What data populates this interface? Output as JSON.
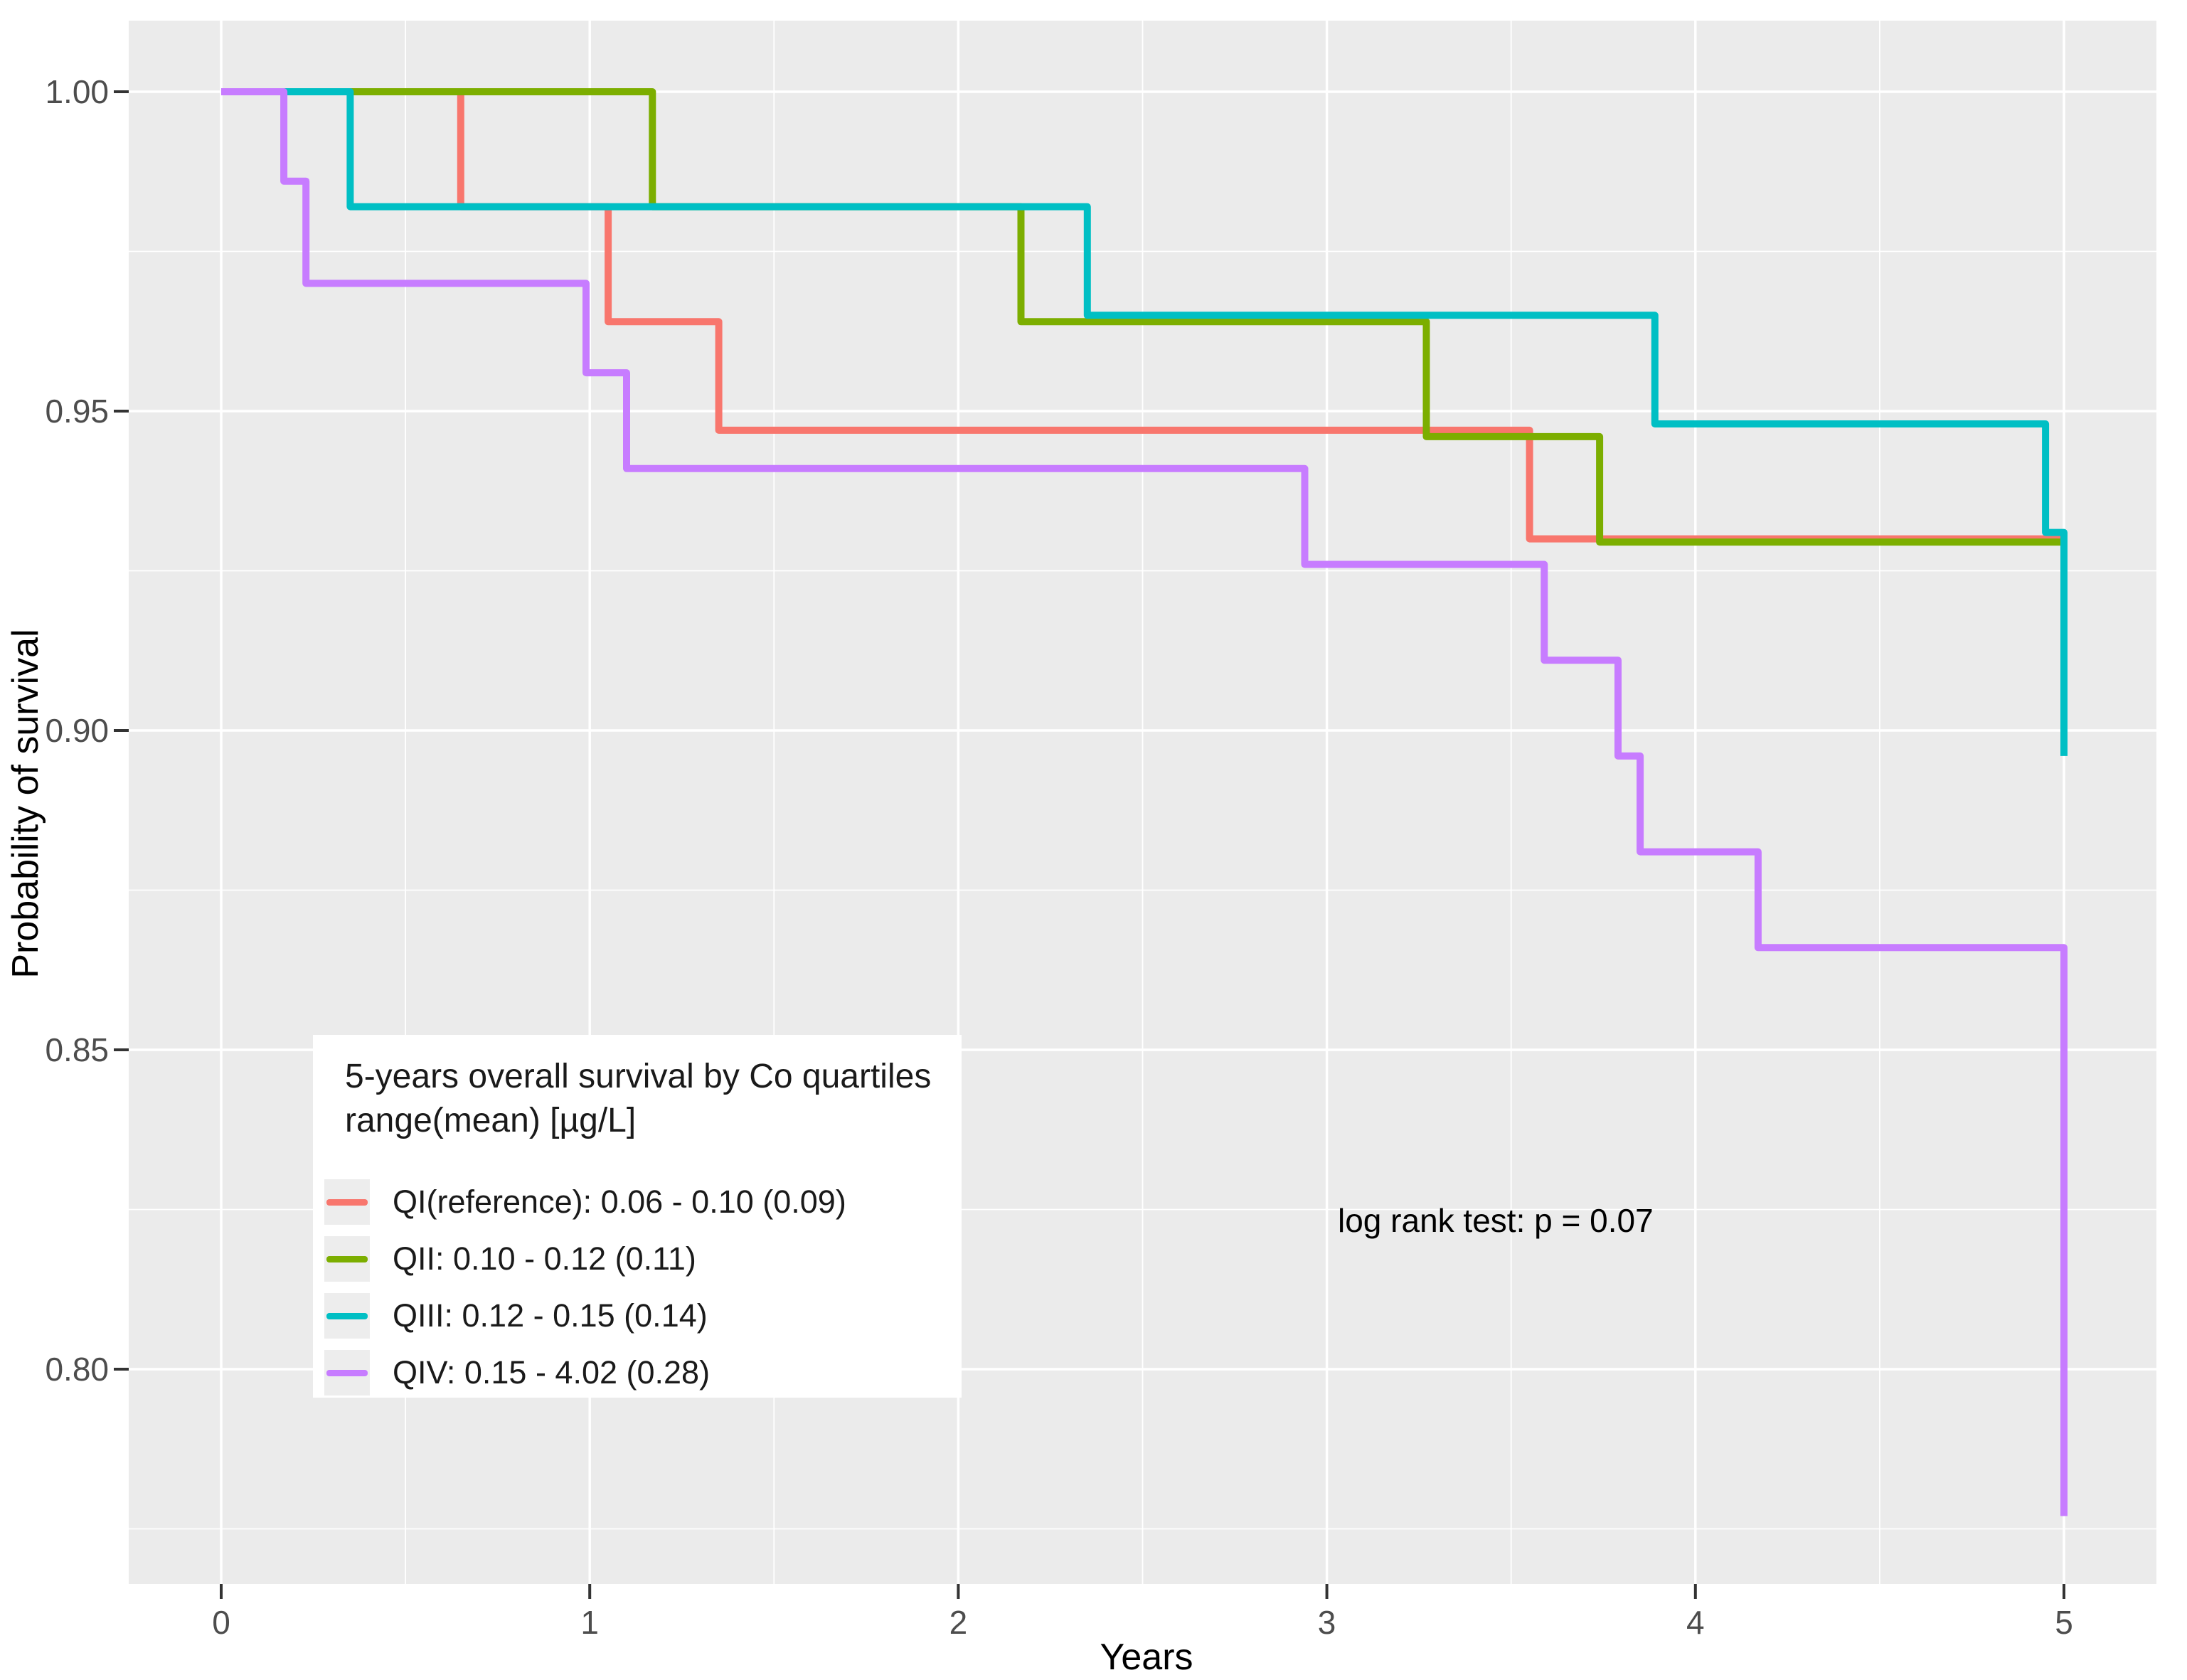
{
  "colors": {
    "panel_background": "#EBEBEB",
    "grid": "#FFFFFF",
    "tick_mark": "#333333",
    "tick_label": "#4D4D4D",
    "legend_key_background": "#EDEDED",
    "series_red": "#F8766D",
    "series_green": "#7CAE00",
    "series_teal": "#00BFC4",
    "series_purple": "#C77CFF"
  },
  "axes": {
    "y_title": "Probability of survival",
    "x_title": "Years",
    "y_ticks": [
      {
        "label": "1.00",
        "value": 1.0
      },
      {
        "label": "0.95",
        "value": 0.95
      },
      {
        "label": "0.90",
        "value": 0.9
      },
      {
        "label": "0.85",
        "value": 0.85
      },
      {
        "label": "0.80",
        "value": 0.8
      }
    ],
    "x_ticks": [
      {
        "label": "0",
        "value": 0
      },
      {
        "label": "1",
        "value": 1
      },
      {
        "label": "2",
        "value": 2
      },
      {
        "label": "3",
        "value": 3
      },
      {
        "label": "4",
        "value": 4
      },
      {
        "label": "5",
        "value": 5
      }
    ]
  },
  "legend": {
    "title_line1": "5-years overall survival by Co quartiles",
    "title_line2": "range(mean) [µg/L]",
    "entries": [
      {
        "label": "QI(reference): 0.06 - 0.10 (0.09)",
        "color": "#F8766D"
      },
      {
        "label": "QII: 0.10 - 0.12 (0.11)",
        "color": "#7CAE00"
      },
      {
        "label": "QIII: 0.12 - 0.15 (0.14)",
        "color": "#00BFC4"
      },
      {
        "label": "QIV: 0.15 - 4.02 (0.28)",
        "color": "#C77CFF"
      }
    ]
  },
  "annotation": {
    "text": "log rank test: p = 0.07"
  },
  "chart_data": {
    "type": "line",
    "subtype": "kaplan-meier-step",
    "title": "",
    "xlabel": "Years",
    "ylabel": "Probability of survival",
    "xlim": [
      -0.25,
      5.25
    ],
    "ylim": [
      0.766,
      1.011
    ],
    "x_major": [
      0,
      1,
      2,
      3,
      4,
      5
    ],
    "y_major": [
      0.8,
      0.85,
      0.9,
      0.95,
      1.0
    ],
    "x_minor": [
      0.5,
      1.5,
      2.5,
      3.5,
      4.5
    ],
    "y_minor": [
      0.775,
      0.825,
      0.875,
      0.925,
      0.975
    ],
    "grid": "white major+minor on gray panel",
    "legend_position": "inside bottom-left",
    "series": [
      {
        "name": "QI(reference): 0.06 - 0.10 (0.09)",
        "color": "#F8766D",
        "points": [
          [
            0,
            1.0
          ],
          [
            0.65,
            1.0
          ],
          [
            0.65,
            0.982
          ],
          [
            1.05,
            0.982
          ],
          [
            1.05,
            0.964
          ],
          [
            1.35,
            0.964
          ],
          [
            1.35,
            0.947
          ],
          [
            3.55,
            0.947
          ],
          [
            3.55,
            0.93
          ],
          [
            5.0,
            0.93
          ]
        ]
      },
      {
        "name": "QII: 0.10 - 0.12 (0.11)",
        "color": "#7CAE00",
        "points": [
          [
            0,
            1.0
          ],
          [
            1.17,
            1.0
          ],
          [
            1.17,
            0.982
          ],
          [
            2.17,
            0.982
          ],
          [
            2.17,
            0.964
          ],
          [
            3.27,
            0.964
          ],
          [
            3.27,
            0.946
          ],
          [
            3.74,
            0.946
          ],
          [
            3.74,
            0.9295
          ],
          [
            5.0,
            0.9295
          ]
        ]
      },
      {
        "name": "QIII: 0.12 - 0.15 (0.14)",
        "color": "#00BFC4",
        "points": [
          [
            0,
            1.0
          ],
          [
            0.35,
            1.0
          ],
          [
            0.35,
            0.982
          ],
          [
            2.35,
            0.982
          ],
          [
            2.35,
            0.965
          ],
          [
            3.89,
            0.965
          ],
          [
            3.89,
            0.948
          ],
          [
            4.95,
            0.948
          ],
          [
            4.95,
            0.931
          ],
          [
            5.0,
            0.931
          ],
          [
            5.0,
            0.896
          ]
        ]
      },
      {
        "name": "QIV: 0.15 - 4.02 (0.28)",
        "color": "#C77CFF",
        "points": [
          [
            0,
            1.0
          ],
          [
            0.17,
            1.0
          ],
          [
            0.17,
            0.986
          ],
          [
            0.23,
            0.986
          ],
          [
            0.23,
            0.97
          ],
          [
            0.99,
            0.97
          ],
          [
            0.99,
            0.956
          ],
          [
            1.1,
            0.956
          ],
          [
            1.1,
            0.941
          ],
          [
            2.94,
            0.941
          ],
          [
            2.94,
            0.926
          ],
          [
            3.59,
            0.926
          ],
          [
            3.59,
            0.911
          ],
          [
            3.79,
            0.911
          ],
          [
            3.79,
            0.896
          ],
          [
            3.85,
            0.896
          ],
          [
            3.85,
            0.881
          ],
          [
            4.17,
            0.881
          ],
          [
            4.17,
            0.866
          ],
          [
            5.0,
            0.866
          ],
          [
            5.0,
            0.777
          ]
        ]
      }
    ],
    "annotation": "log rank test: p = 0.07"
  }
}
